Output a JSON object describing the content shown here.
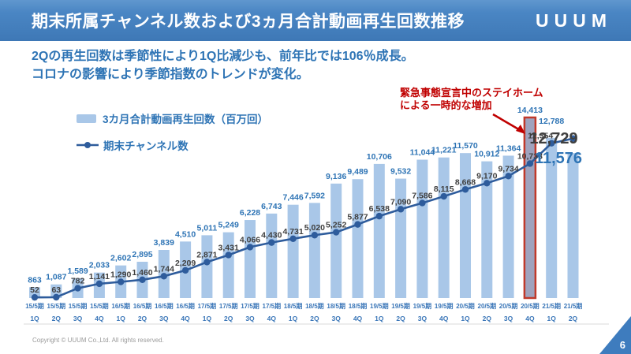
{
  "header": {
    "title": "期末所属チャンネル数および3ヵ月合計動画再生回数推移",
    "logo": "UUUM"
  },
  "subtitle": {
    "line1": "2Qの再生回数は季節性により1Q比減少も、前年比では106％成長。",
    "line2": "コロナの影響により季節指数のトレンドが変化。"
  },
  "annotation": {
    "line1": "緊急事態宣言中のステイホーム",
    "line2": "による一時的な増加"
  },
  "footer": {
    "copyright": "Copyright © UUUM Co.,Ltd. All rights reserved.",
    "page": "6"
  },
  "chart_data": {
    "type": "combo bar+line",
    "categories_period": [
      "15/5期",
      "15/5期",
      "15/5期",
      "15/5期",
      "16/5期",
      "16/5期",
      "16/5期",
      "16/5期",
      "17/5期",
      "17/5期",
      "17/5期",
      "17/5期",
      "18/5期",
      "18/5期",
      "18/5期",
      "18/5期",
      "19/5期",
      "19/5期",
      "19/5期",
      "19/5期",
      "20/5期",
      "20/5期",
      "20/5期",
      "20/5期",
      "21/5期",
      "21/5期"
    ],
    "categories_quarter": [
      "1Q",
      "2Q",
      "3Q",
      "4Q",
      "1Q",
      "2Q",
      "3Q",
      "4Q",
      "1Q",
      "2Q",
      "3Q",
      "4Q",
      "1Q",
      "2Q",
      "3Q",
      "4Q",
      "1Q",
      "2Q",
      "3Q",
      "4Q",
      "1Q",
      "2Q",
      "3Q",
      "4Q",
      "1Q",
      "2Q"
    ],
    "series": [
      {
        "name": "3カ月合計動画再生回数（百万回）",
        "type": "bar",
        "color": "#a9c7e8",
        "values": [
          863,
          1087,
          1589,
          2033,
          2602,
          2895,
          3839,
          4510,
          5011,
          5249,
          6228,
          6743,
          7446,
          7592,
          9136,
          9489,
          10706,
          9532,
          11044,
          11221,
          11570,
          10912,
          11364,
          14413,
          12788,
          11576
        ]
      },
      {
        "name": "期末チャンネル数",
        "type": "line",
        "color": "#2e5c9c",
        "values": [
          52,
          63,
          782,
          1141,
          1290,
          1460,
          1744,
          2209,
          2871,
          3431,
          4066,
          4430,
          4731,
          5020,
          5252,
          5877,
          6538,
          7090,
          7586,
          8115,
          8668,
          9170,
          9734,
          10733,
          12354,
          12729
        ]
      }
    ],
    "highlight_bar": {
      "index": 23,
      "value": 14413,
      "fill": "#9fa3be",
      "stroke": "#c0392b",
      "reason": "緊急事態宣言中のステイホームによる一時的な増加"
    },
    "label_colors": {
      "bar": "#2e74b5",
      "line": "#3f3f3f"
    },
    "xlabel_color": "#3a76b8",
    "ylim": [
      0,
      14500
    ],
    "gridlines": false,
    "legend_position": "top-left"
  }
}
